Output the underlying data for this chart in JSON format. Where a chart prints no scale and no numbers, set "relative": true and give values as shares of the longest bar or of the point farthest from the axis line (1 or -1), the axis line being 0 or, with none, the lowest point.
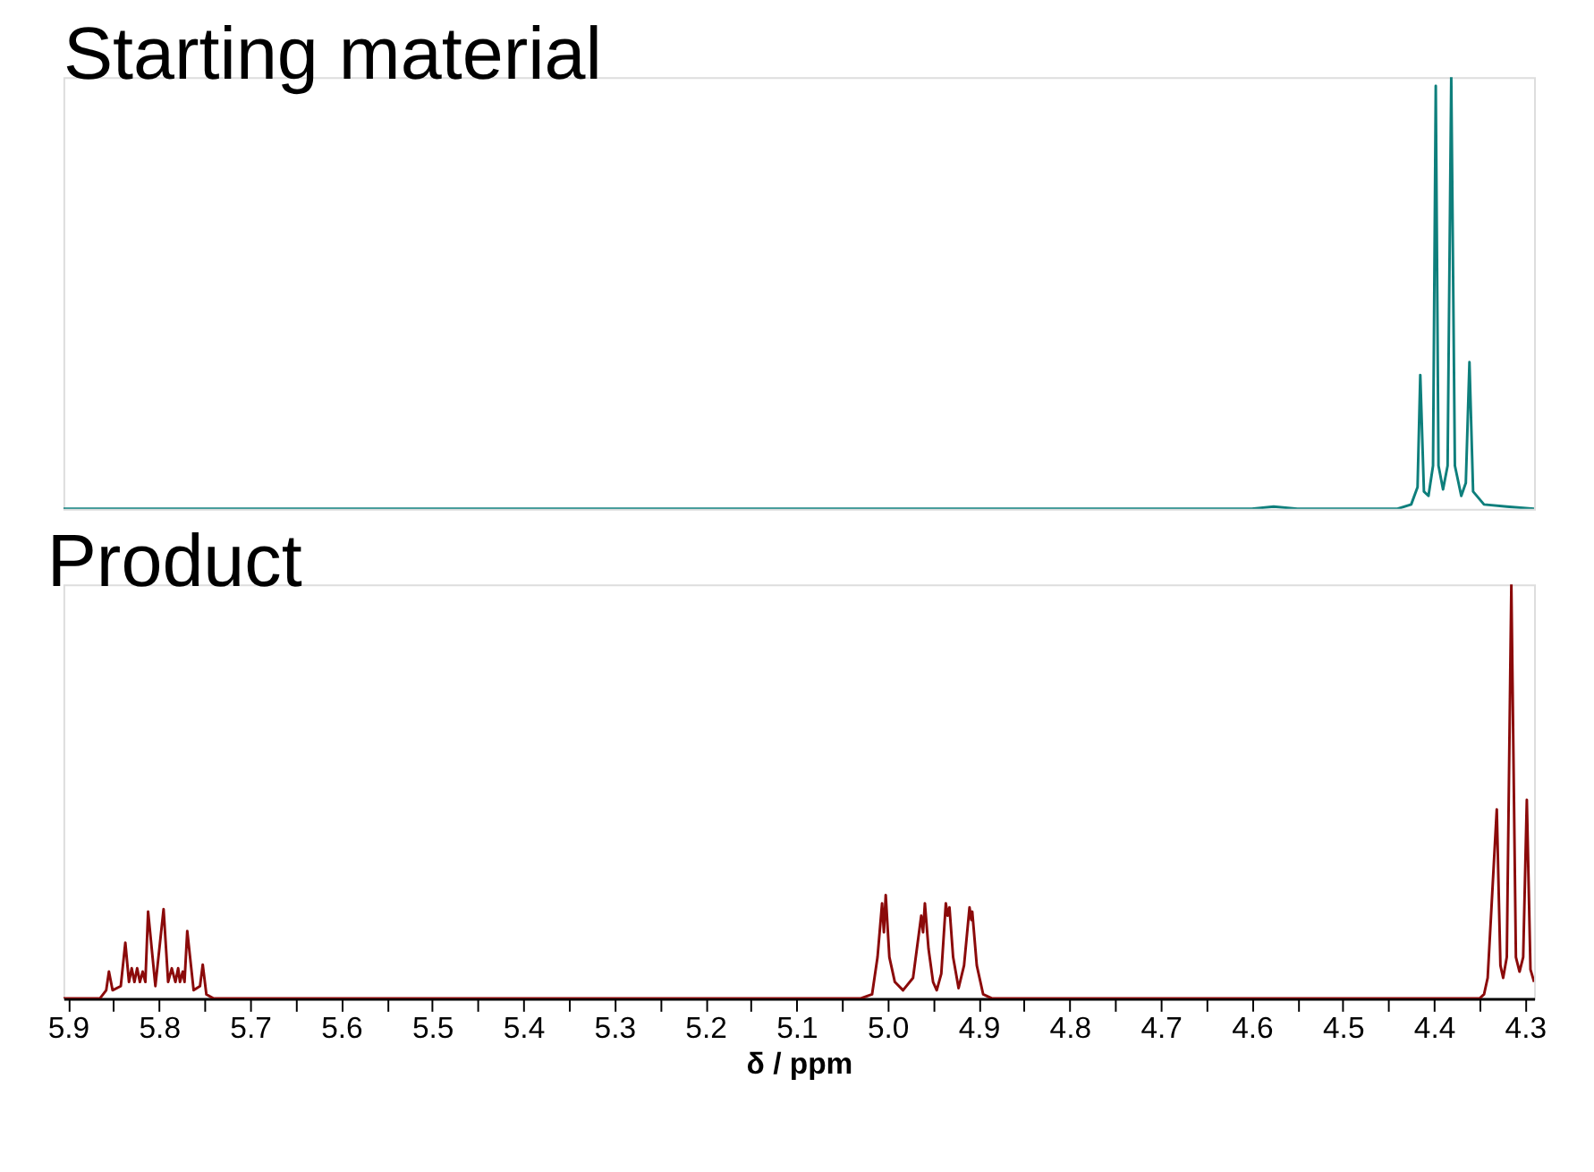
{
  "chart_data": [
    {
      "type": "line",
      "title": "Starting material",
      "relative": true,
      "xlim": [
        5.905,
        4.29
      ],
      "tick_labels": false,
      "grid": false,
      "marker": "none",
      "line_style": "solid",
      "series": [
        {
          "color": "#0e7f7c",
          "x": [
            5.905,
            4.6,
            4.576,
            4.55,
            4.44,
            4.425,
            4.418,
            4.415,
            4.411,
            4.406,
            4.401,
            4.398,
            4.395,
            4.39,
            4.385,
            4.381,
            4.377,
            4.37,
            4.365,
            4.361,
            4.357,
            4.345,
            4.32,
            4.29
          ],
          "values": [
            0,
            0,
            0.005,
            0,
            0,
            0.01,
            0.05,
            0.31,
            0.04,
            0.03,
            0.1,
            0.98,
            0.1,
            0.045,
            0.1,
            1.0,
            0.1,
            0.03,
            0.06,
            0.34,
            0.04,
            0.01,
            0.005,
            0
          ]
        }
      ]
    },
    {
      "type": "line",
      "title": "Product",
      "relative": true,
      "xlabel": "δ / ppm",
      "xlim": [
        5.905,
        4.29
      ],
      "tick_labels": "x",
      "grid": false,
      "marker": "none",
      "line_style": "solid",
      "xticks": [
        5.9,
        {
          "value": 5.85,
          "label": null
        },
        5.8,
        {
          "value": 5.75,
          "label": null
        },
        5.7,
        {
          "value": 5.65,
          "label": null
        },
        5.6,
        {
          "value": 5.55,
          "label": null
        },
        5.5,
        {
          "value": 5.45,
          "label": null
        },
        5.4,
        {
          "value": 5.35,
          "label": null
        },
        5.3,
        {
          "value": 5.25,
          "label": null
        },
        5.2,
        {
          "value": 5.15,
          "label": null
        },
        5.1,
        {
          "value": 5.05,
          "label": null
        },
        {
          "value": 5.0,
          "label": "5.0"
        },
        {
          "value": 4.95,
          "label": null
        },
        4.9,
        {
          "value": 4.85,
          "label": null
        },
        4.8,
        {
          "value": 4.75,
          "label": null
        },
        4.7,
        {
          "value": 4.65,
          "label": null
        },
        4.6,
        {
          "value": 4.55,
          "label": null
        },
        4.5,
        {
          "value": 4.45,
          "label": null
        },
        4.4,
        {
          "value": 4.35,
          "label": null
        },
        4.3
      ],
      "series": [
        {
          "color": "#8b0a0a",
          "x": [
            5.905,
            5.865,
            5.858,
            5.855,
            5.851,
            5.842,
            5.837,
            5.833,
            5.83,
            5.827,
            5.824,
            5.821,
            5.818,
            5.815,
            5.812,
            5.804,
            5.795,
            5.79,
            5.786,
            5.782,
            5.779,
            5.777,
            5.774,
            5.772,
            5.769,
            5.762,
            5.755,
            5.752,
            5.748,
            5.74,
            5.03,
            5.017,
            5.011,
            5.006,
            5.004,
            5.002,
            4.998,
            4.992,
            4.983,
            4.972,
            4.963,
            4.961,
            4.959,
            4.955,
            4.95,
            4.946,
            4.941,
            4.936,
            4.934,
            4.932,
            4.928,
            4.922,
            4.916,
            4.91,
            4.908,
            4.907,
            4.902,
            4.895,
            4.885,
            4.35,
            4.345,
            4.341,
            4.331,
            4.327,
            4.324,
            4.32,
            4.315,
            4.31,
            4.306,
            4.302,
            4.298,
            4.294,
            4.29
          ],
          "values": [
            0,
            0,
            0.02,
            0.065,
            0.02,
            0.03,
            0.135,
            0.04,
            0.073,
            0.04,
            0.073,
            0.04,
            0.065,
            0.04,
            0.21,
            0.03,
            0.216,
            0.04,
            0.073,
            0.04,
            0.073,
            0.04,
            0.065,
            0.04,
            0.163,
            0.02,
            0.03,
            0.082,
            0.01,
            0,
            0,
            0.01,
            0.1,
            0.23,
            0.16,
            0.25,
            0.1,
            0.04,
            0.02,
            0.05,
            0.2,
            0.16,
            0.23,
            0.12,
            0.04,
            0.02,
            0.06,
            0.23,
            0.2,
            0.22,
            0.1,
            0.025,
            0.08,
            0.22,
            0.19,
            0.21,
            0.08,
            0.01,
            0,
            0,
            0.01,
            0.05,
            0.457,
            0.08,
            0.05,
            0.1,
            1.0,
            0.1,
            0.065,
            0.1,
            0.48,
            0.07,
            0.04
          ]
        }
      ]
    }
  ]
}
